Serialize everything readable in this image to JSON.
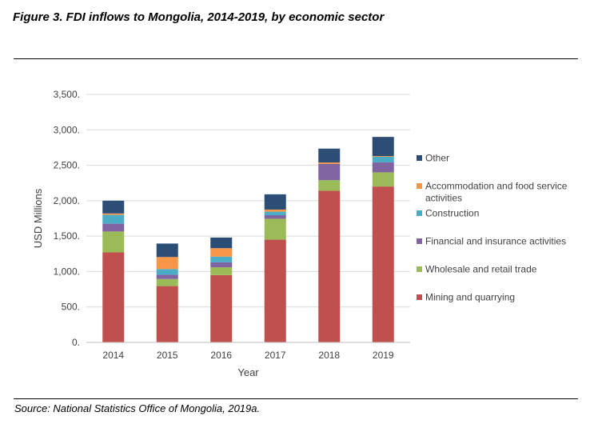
{
  "figure": {
    "title": "Figure 3. FDI inflows to Mongolia, 2014-2019, by economic sector",
    "source": "Source: National Statistics Office of Mongolia, 2019a."
  },
  "chart_data": {
    "type": "bar",
    "stacked": true,
    "categories": [
      "2014",
      "2015",
      "2016",
      "2017",
      "2018",
      "2019"
    ],
    "xlabel": "Year",
    "ylabel": "USD Millions",
    "ylim": [
      0,
      3500
    ],
    "yticks": [
      0,
      500,
      1000,
      1500,
      2000,
      2500,
      3000,
      3500
    ],
    "ytick_labels": [
      "0.",
      "500.",
      "1,000.",
      "1,500.",
      "2,000.",
      "2,500.",
      "3,000.",
      "3,500."
    ],
    "grid": true,
    "legend_position": "right",
    "series": [
      {
        "name": "Mining and quarrying",
        "color": "#c0504d",
        "values": [
          1270,
          795,
          950,
          1450,
          2140,
          2200
        ]
      },
      {
        "name": "Wholesale and retail trade",
        "color": "#9bbb59",
        "values": [
          295,
          100,
          110,
          295,
          150,
          200
        ]
      },
      {
        "name": "Financial and insurance activities",
        "color": "#8064a2",
        "values": [
          110,
          60,
          70,
          50,
          230,
          140
        ]
      },
      {
        "name": "Construction",
        "color": "#4bacc6",
        "values": [
          125,
          80,
          80,
          50,
          0,
          80
        ]
      },
      {
        "name": "Accommodation and food service\nactivities",
        "color": "#f79646",
        "values": [
          20,
          170,
          120,
          30,
          20,
          10
        ]
      },
      {
        "name": "Other",
        "color": "#2c4d75",
        "values": [
          180,
          190,
          150,
          215,
          195,
          270
        ]
      }
    ]
  }
}
